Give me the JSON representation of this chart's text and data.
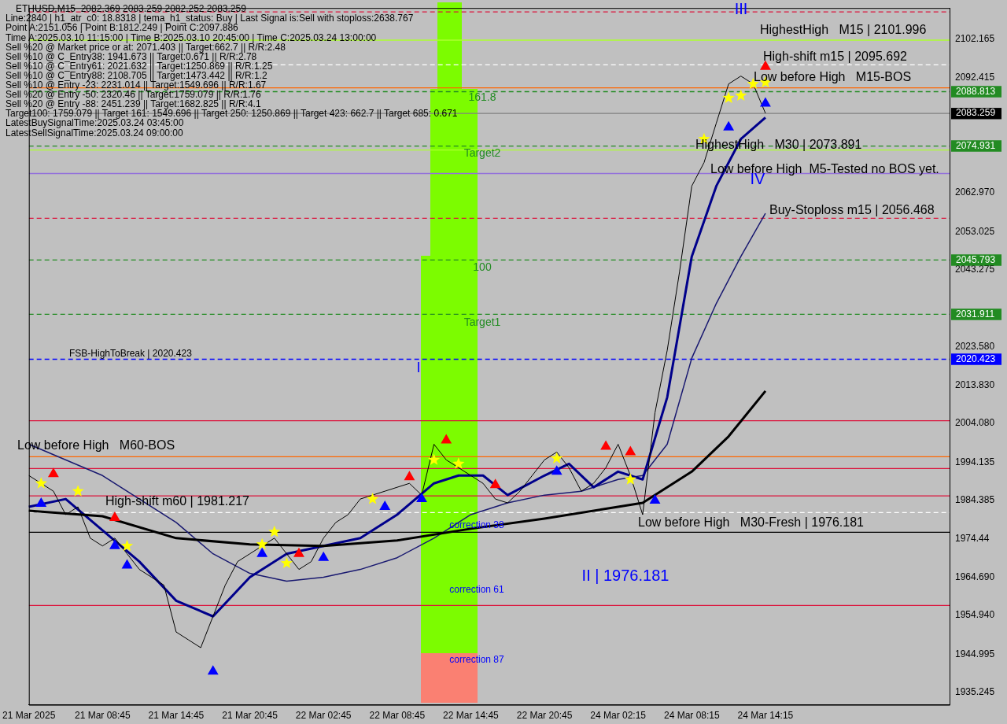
{
  "chart_data": {
    "type": "line",
    "title": "ETHUSD,M15  2082.369 2083.259 2082.252 2083.259",
    "categories": [
      "21 Mar 2025",
      null,
      null,
      null,
      null,
      null,
      "21 Mar 08:45",
      null,
      null,
      null,
      null,
      null,
      "21 Mar 14:45",
      null,
      null,
      null,
      null,
      null,
      "21 Mar 20:45",
      null,
      null,
      null,
      null,
      null,
      "22 Mar 02:45",
      null,
      null,
      null,
      null,
      null,
      "22 Mar 08:45",
      null,
      null,
      null,
      null,
      null,
      "22 Mar 14:45",
      null,
      null,
      null,
      null,
      null,
      "22 Mar 20:45",
      null,
      null,
      null,
      null,
      null,
      "24 Mar 02:15",
      null,
      null,
      null,
      null,
      null,
      "24 Mar 08:15",
      null,
      null,
      null,
      null,
      null,
      "24 Mar 14:15",
      null,
      null,
      null,
      null,
      null,
      null,
      null,
      null,
      null,
      null,
      null,
      null,
      null,
      null,
      null
    ],
    "series": [
      {
        "color": "#000000",
        "values": [
          1990.7,
          1988.7,
          1986.7,
          1980.7,
          1982.7,
          1974.7,
          1972.7,
          1974.7,
          1970.7,
          1966.7,
          1964.7,
          1962.7,
          1950.7,
          1948.7,
          1946.7,
          1954.7,
          1962.7,
          1968.7,
          1970.7,
          1972.7,
          1974.7,
          1970.7,
          1966.7,
          1968.7,
          1974.7,
          1978.7,
          1980.7,
          1984.7,
          1985.7,
          1986.7,
          1987.7,
          1988.7,
          1985.7,
          1998.7,
          1994.7,
          1992.7,
          1990.7,
          1988.7,
          1984.7,
          1983.7,
          1986.7,
          1990.7,
          1994.7,
          1996.7,
          1992.7,
          1986.7,
          1988.7,
          1992.7,
          1998.7,
          1990.7,
          1980.7,
          2006.7,
          2022.7,
          2042.7,
          2064.7,
          2070.7,
          2080.8,
          2090.8,
          2092.8,
          2090.8,
          2083.3,
          null,
          null,
          null,
          null,
          null,
          null,
          null,
          null,
          null,
          null,
          null,
          null,
          null,
          null,
          null
        ]
      },
      {
        "type": "line",
        "color": "#000000",
        "values": [
          1981.7,
          null,
          null,
          null,
          null,
          null,
          1980.3,
          null,
          null,
          null,
          null,
          null,
          1974.7,
          null,
          null,
          null,
          null,
          null,
          1973.1,
          null,
          null,
          null,
          null,
          null,
          1972.7,
          null,
          null,
          null,
          null,
          null,
          1974.1,
          null,
          null,
          null,
          null,
          null,
          1977.1,
          null,
          null,
          null,
          null,
          null,
          1979.7,
          null,
          null,
          null,
          null,
          null,
          1982.7,
          null,
          1983.7,
          null,
          null,
          null,
          1991.7,
          null,
          null,
          2000.7,
          null,
          null,
          2012.3,
          null,
          null,
          null,
          null,
          null,
          null,
          null,
          null,
          null,
          null,
          null,
          null,
          null,
          null,
          null
        ]
      },
      {
        "type": "line",
        "color": "#00008b",
        "values": [
          1982.7,
          null,
          null,
          1984.7,
          null,
          null,
          1976.7,
          null,
          null,
          1968.7,
          null,
          null,
          1958.7,
          null,
          null,
          1954.7,
          null,
          null,
          1964.7,
          null,
          null,
          1970.7,
          null,
          null,
          1972.7,
          null,
          null,
          1974.7,
          null,
          null,
          1980.7,
          null,
          null,
          1988.7,
          null,
          1990.7,
          null,
          1990.7,
          null,
          1985.7,
          null,
          null,
          1990.7,
          null,
          1993.7,
          null,
          1987.7,
          null,
          1991.7,
          null,
          1989.7,
          null,
          2010.7,
          null,
          2046.7,
          null,
          2064.7,
          null,
          2076.7,
          null,
          2082.2,
          null,
          null,
          null,
          null,
          null,
          null,
          null,
          null,
          null,
          null,
          null,
          null,
          null,
          null,
          null
        ]
      },
      {
        "type": "line",
        "color": "#191970",
        "values": [
          1998.7,
          null,
          null,
          null,
          null,
          null,
          1990.7,
          null,
          null,
          null,
          null,
          null,
          1978.7,
          null,
          null,
          1970.7,
          null,
          null,
          1965.7,
          null,
          null,
          1963.7,
          null,
          null,
          1964.7,
          null,
          null,
          1966.7,
          null,
          null,
          1969.7,
          null,
          null,
          1974.7,
          null,
          null,
          1980.7,
          null,
          null,
          1983.7,
          null,
          null,
          1985.7,
          null,
          null,
          1986.7,
          null,
          null,
          1989.7,
          null,
          1990.7,
          null,
          1998.7,
          null,
          2020.7,
          null,
          2034.7,
          null,
          2046.7,
          null,
          2057.7,
          null,
          null,
          null,
          null,
          null,
          null,
          null,
          null,
          null,
          null,
          null,
          null,
          null,
          null,
          null
        ]
      },
      {
        "type": "scatter",
        "color": "#ffff00",
        "marker": "star",
        "values": [
          null,
          1988.7,
          null,
          null,
          1986.7,
          null,
          null,
          null,
          1972.7,
          null,
          null,
          null,
          null,
          null,
          null,
          null,
          null,
          null,
          null,
          1973.1,
          1976.3,
          1968.3,
          null,
          null,
          null,
          null,
          null,
          null,
          1984.7,
          null,
          null,
          null,
          null,
          1994.7,
          null,
          1993.7,
          null,
          null,
          null,
          null,
          null,
          null,
          null,
          1995.1,
          null,
          null,
          null,
          null,
          null,
          1989.7,
          null,
          null,
          null,
          null,
          null,
          2076.7,
          null,
          2087.2,
          2087.8,
          2090.8,
          2091.2,
          null,
          null,
          null,
          null,
          null,
          null,
          null,
          null,
          null,
          null,
          null,
          null,
          null,
          null,
          null
        ]
      },
      {
        "type": "scatter",
        "color": "#0000ff",
        "marker": "triangle",
        "values": [
          null,
          1983.5,
          null,
          null,
          null,
          null,
          null,
          1972.7,
          1967.7,
          null,
          null,
          null,
          null,
          null,
          null,
          1940.6,
          null,
          null,
          null,
          1970.7,
          null,
          null,
          null,
          null,
          1969.7,
          null,
          null,
          null,
          null,
          1982.7,
          null,
          null,
          1984.7,
          null,
          null,
          null,
          null,
          null,
          null,
          null,
          null,
          null,
          null,
          1991.7,
          null,
          null,
          null,
          null,
          null,
          null,
          null,
          1984.3,
          null,
          null,
          null,
          null,
          null,
          2079.7,
          null,
          null,
          2085.8,
          null,
          null,
          null,
          null,
          null,
          null,
          null,
          null,
          null,
          null,
          null,
          null,
          null,
          null,
          null
        ]
      },
      {
        "type": "scatter",
        "color": "#ff0000",
        "marker": "triangle",
        "values": [
          null,
          null,
          1991.1,
          null,
          null,
          null,
          null,
          1979.9,
          null,
          null,
          null,
          null,
          null,
          null,
          null,
          null,
          null,
          null,
          null,
          null,
          null,
          null,
          1970.7,
          null,
          null,
          null,
          null,
          null,
          null,
          null,
          null,
          1990.3,
          null,
          null,
          1999.7,
          null,
          null,
          null,
          1988.3,
          null,
          null,
          null,
          null,
          null,
          null,
          null,
          null,
          1998.1,
          null,
          1996.7,
          null,
          null,
          null,
          null,
          null,
          null,
          null,
          null,
          null,
          null,
          2095.2,
          null,
          null,
          null,
          null,
          null,
          null,
          null,
          null,
          null,
          null,
          null,
          null,
          null,
          null,
          null
        ]
      }
    ],
    "ylim": [
      1932.1,
      2110.2
    ],
    "yticks": [
      1935.245,
      {
        "value": 1944.995,
        "label": "1944.995"
      },
      {
        "value": 1954.94,
        "label": "1954.940"
      },
      {
        "value": 1964.69,
        "label": "1964.690"
      },
      1974.44,
      1984.385,
      1994.135,
      {
        "value": 2004.08,
        "label": "2004.080"
      },
      {
        "value": 2013.83,
        "label": "2013.830"
      },
      2020.423,
      {
        "value": 2023.58,
        "label": "2023.580"
      },
      2031.911,
      2043.275,
      2045.793,
      2053.025,
      {
        "value": 2062.97,
        "label": "2062.970"
      },
      2074.931,
      2083.259,
      2088.813,
      2092.415,
      2102.165
    ],
    "ref_lines": [
      {
        "axis": "y",
        "value": 2088.813,
        "color": "#228b22",
        "line_style": "dashed"
      },
      {
        "axis": "y",
        "value": 2083.259,
        "color": "#808080",
        "line_style": "solid"
      },
      {
        "axis": "y",
        "value": 2074.931,
        "label": "Target2",
        "color": "#228b22",
        "line_style": "dashed"
      },
      {
        "axis": "y",
        "value": 2045.793,
        "color": "#228b22",
        "line_style": "dashed"
      },
      {
        "axis": "y",
        "value": 2031.911,
        "label": "Target1",
        "color": "#228b22",
        "line_style": "dashed"
      },
      {
        "axis": "y",
        "value": 2020.423,
        "label": "FSB-HighToBreak | 2020.423",
        "color": "#0000ff",
        "line_style": "dashed"
      },
      {
        "axis": "y",
        "value": 1981.217,
        "label": "High-shift m60 | 1981.217",
        "color": "#ffffff",
        "line_style": "dashed"
      },
      {
        "axis": "y",
        "value": 1995.5,
        "label": "Low before High   M60-BOS",
        "color": "#ff6600",
        "line_style": "solid"
      },
      {
        "axis": "y",
        "value": 1976.181,
        "label": "Low before High   M30-Fresh | 1976.181",
        "color": "#000000",
        "line_style": "solid"
      },
      {
        "axis": "y",
        "value": 2056.468,
        "label": "Buy-Stoploss m15 | 2056.468",
        "color": "#dc143c",
        "line_style": "dashed"
      },
      {
        "axis": "y",
        "value": 2101.996,
        "label": "HighestHigh   M15 | 2101.996",
        "color": "#adff2f",
        "line_style": "solid"
      },
      {
        "axis": "y",
        "value": 2095.692,
        "label": "High-shift m15 | 2095.692",
        "color": "#ffffff",
        "line_style": "dashed"
      },
      {
        "axis": "y",
        "value": 2089.8,
        "label": "Low before High   M15-BOS",
        "color": "#ff6600",
        "line_style": "solid"
      },
      {
        "axis": "y",
        "value": 2073.891,
        "label": "HighestHigh   M30 | 2073.891",
        "color": "#adff2f",
        "line_style": "solid"
      },
      {
        "axis": "y",
        "value": 2067.9,
        "label": "Low before High  M5-Tested no BOS yet.",
        "color": "#9370db",
        "line_style": "solid"
      },
      {
        "axis": "y",
        "value": 1992.5,
        "color": "#dc143c",
        "line_style": "solid"
      },
      {
        "axis": "y",
        "value": 1985.5,
        "color": "#dc143c",
        "line_style": "solid"
      },
      {
        "axis": "y",
        "value": 1957.5,
        "color": "#dc143c",
        "line_style": "solid"
      },
      {
        "axis": "y",
        "value": 2004.7,
        "color": "#dc143c",
        "line_style": "solid"
      },
      {
        "axis": "y",
        "value": 2109.2,
        "color": "#dc143c",
        "line_style": "dashed"
      }
    ],
    "annotations": [
      "Line:2840 | h1_atr_c0: 18.8318 | tema_h1_status: Buy | Last Signal is:Sell with stoploss:2638.767",
      "Point A:2151.056 | Point B:1812.249 | Point C:2097.886",
      "Time A:2025.03.10 11:15:00 | Time B:2025.03.10 20:45:00 | Time C:2025.03.24 13:00:00",
      "Sell %20 @ Market price or at: 2071.403 || Target:662.7 || R/R:2.48",
      "Sell %10 @ C_Entry38: 1941.673 || Target:0.671 || R/R:2.78",
      "Sell %10 @ C_Entry61: 2021.632 || Target:1250.869 || R/R:1.25",
      "Sell %10 @ C_Entry88: 2108.705 || Target:1473.442 || R/R:1.2",
      "Sell %10 @ Entry -23: 2231.014 || Target:1549.696 || R/R:1.67",
      "Sell %20 @ Entry -50: 2320.46 || Target:1759.079 || R/R:1.76",
      "Sell %20 @ Entry -88: 2451.239 || Target:1682.825 || R/R:4.1",
      "Target100: 1759.079 || Target 161: 1549.696 || Target 250: 1250.869 || Target 423: 662.7 || Target 685: 0.671",
      "LatestBuySignalTime:2025.03.24 03:45:00",
      "LatestSellSignalTime:2025.03.24 09:00:00",
      "correction 38",
      "correction 61",
      "correction 87",
      "I",
      "II | 1976.181",
      "III",
      "IV",
      "161.8",
      "100"
    ]
  }
}
